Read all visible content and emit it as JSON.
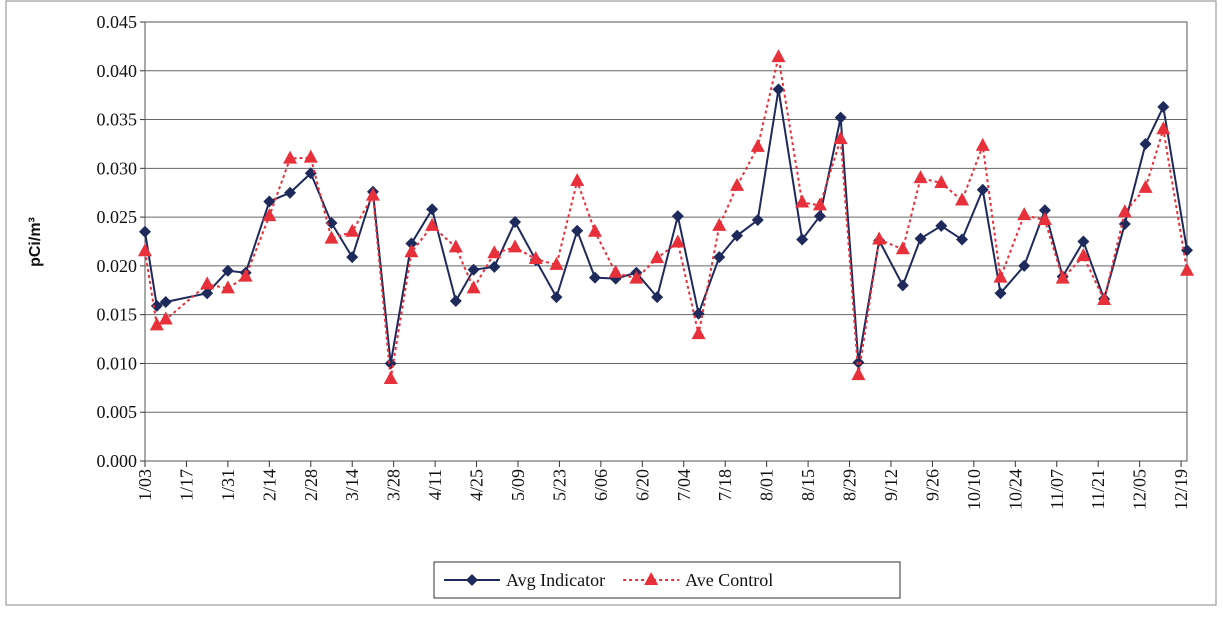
{
  "chart_data": {
    "type": "line",
    "y_label": "pCi/m³",
    "x": [
      "1/03",
      "1/07",
      "1/10",
      "1/24",
      "1/31",
      "2/06",
      "2/14",
      "2/21",
      "2/28",
      "3/07",
      "3/14",
      "3/21",
      "3/27",
      "4/03",
      "4/10",
      "4/18",
      "4/24",
      "5/01",
      "5/08",
      "5/15",
      "5/22",
      "5/29",
      "6/04",
      "6/11",
      "6/18",
      "6/25",
      "7/02",
      "7/09",
      "7/16",
      "7/22",
      "7/29",
      "8/05",
      "8/13",
      "8/19",
      "8/26",
      "9/01",
      "9/08",
      "9/16",
      "9/22",
      "9/29",
      "10/06",
      "10/13",
      "10/19",
      "10/27",
      "11/03",
      "11/09",
      "11/16",
      "11/23",
      "11/30",
      "12/07",
      "12/13",
      "12/21"
    ],
    "series": [
      {
        "name": "Avg Indicator",
        "color": "#1f2a5c",
        "marker": "diamond",
        "dash": "solid",
        "values": [
          0.0235,
          0.0159,
          0.0163,
          0.0172,
          0.0195,
          0.0193,
          0.0266,
          0.0275,
          0.0295,
          0.0244,
          0.0209,
          0.0276,
          0.01,
          0.0223,
          0.0258,
          0.0164,
          0.0196,
          0.0199,
          0.0245,
          0.0206,
          0.0168,
          0.0236,
          0.0188,
          0.0187,
          0.0193,
          0.0168,
          0.0251,
          0.0151,
          0.0209,
          0.0231,
          0.0247,
          0.0381,
          0.0227,
          0.0251,
          0.0352,
          0.0101,
          0.0226,
          0.018,
          0.0228,
          0.0241,
          0.0227,
          0.0278,
          0.0172,
          0.02,
          0.0257,
          0.0189,
          0.0225,
          0.0166,
          0.0243,
          0.0325,
          0.0363,
          0.0216
        ]
      },
      {
        "name": "Ave Control",
        "color": "#e8303a",
        "marker": "triangle",
        "dash": "dotted",
        "values": [
          0.0215,
          0.0139,
          0.0145,
          0.0181,
          0.0177,
          0.0189,
          0.0251,
          0.031,
          0.0311,
          0.0228,
          0.0235,
          0.0272,
          0.0084,
          0.0214,
          0.0241,
          0.0219,
          0.0177,
          0.0213,
          0.0219,
          0.0207,
          0.0201,
          0.0287,
          0.0235,
          0.0193,
          0.0187,
          0.0208,
          0.0224,
          0.013,
          0.0241,
          0.0282,
          0.0322,
          0.0414,
          0.0265,
          0.0262,
          0.033,
          0.0088,
          0.0227,
          0.0217,
          0.029,
          0.0285,
          0.0267,
          0.0323,
          0.0188,
          0.0252,
          0.0247,
          0.0187,
          0.021,
          0.0165,
          0.0255,
          0.028,
          0.034,
          0.0195
        ]
      }
    ],
    "xlim": [
      "1/03",
      "12/21"
    ],
    "xticks": [
      "1/03",
      "1/17",
      "1/31",
      "2/14",
      "2/28",
      "3/14",
      "3/28",
      "4/11",
      "4/25",
      "5/09",
      "5/23",
      "6/06",
      "6/20",
      "7/04",
      "7/18",
      "8/01",
      "8/15",
      "8/29",
      "9/12",
      "9/26",
      "10/10",
      "10/24",
      "11/07",
      "11/21",
      "12/05",
      "12/19"
    ],
    "ylim": [
      0,
      0.045
    ],
    "yticks": [
      {
        "value": 0,
        "label": "0.000"
      },
      {
        "value": 0.005,
        "label": "0.005"
      },
      {
        "value": 0.01,
        "label": "0.010"
      },
      {
        "value": 0.015,
        "label": "0.015"
      },
      {
        "value": 0.02,
        "label": "0.020"
      },
      {
        "value": 0.025,
        "label": "0.025"
      },
      {
        "value": 0.03,
        "label": "0.030"
      },
      {
        "value": 0.035,
        "label": "0.035"
      },
      {
        "value": 0.04,
        "label": "0.040"
      },
      {
        "value": 0.045,
        "label": "0.045"
      }
    ],
    "grid": true,
    "legend": "bottom"
  }
}
